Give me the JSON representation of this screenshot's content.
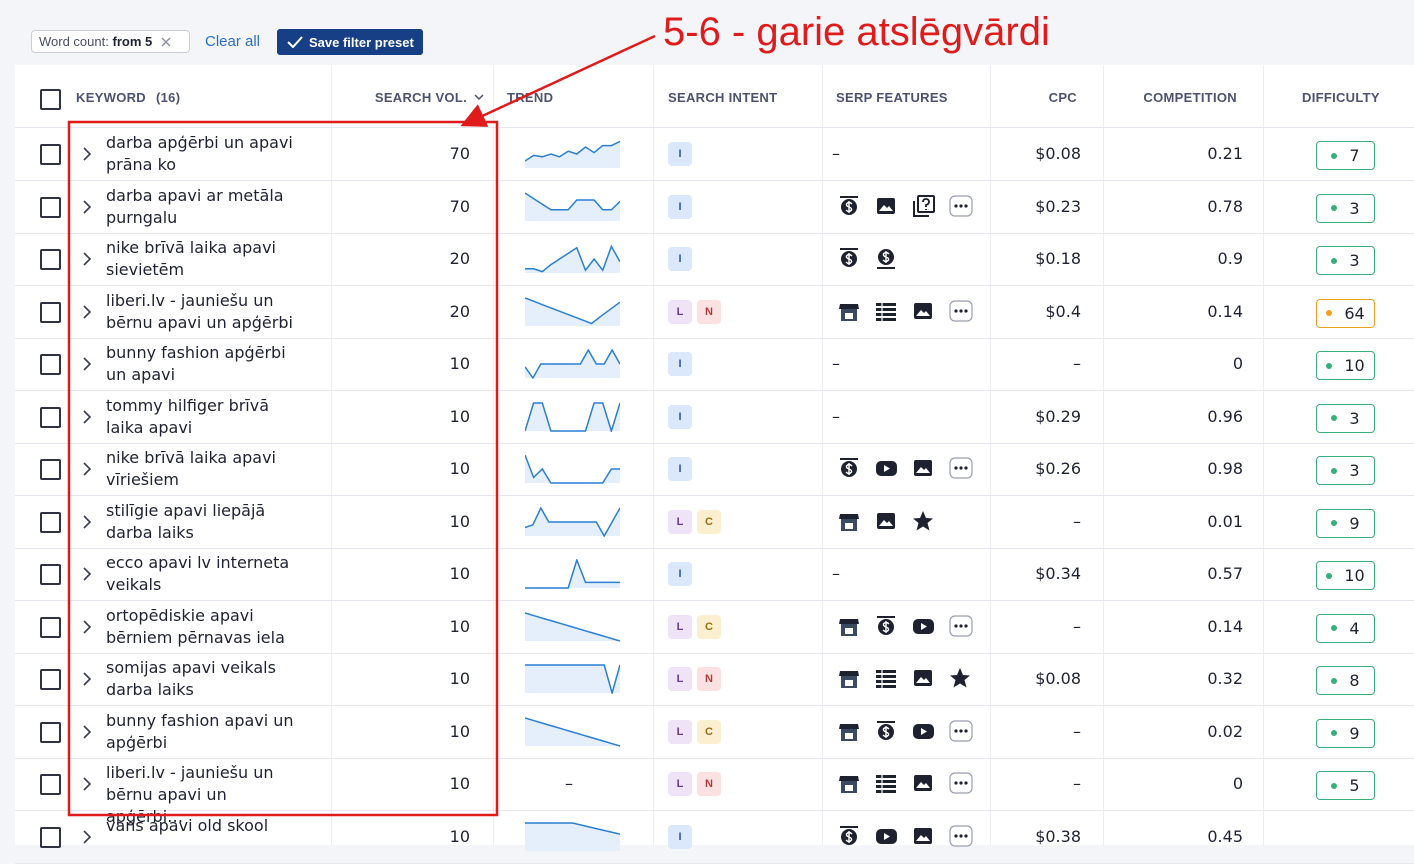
{
  "filters": {
    "chip_label": "Word count:",
    "chip_value": "from 5",
    "clear": "Clear all",
    "save": "Save filter preset"
  },
  "annotation": "5-6 - garie atslēgvārdi",
  "table": {
    "headers": {
      "keyword": "KEYWORD",
      "count": "(16)",
      "volume": "SEARCH VOL.",
      "trend": "TREND",
      "intent": "SEARCH INTENT",
      "serp": "SERP FEATURES",
      "cpc": "CPC",
      "competition": "COMPETITION",
      "difficulty": "DIFFICULTY"
    },
    "intent_colors": {
      "I": [
        "#dbe7fb",
        "#2d5c9e"
      ],
      "L": [
        "#eee3f7",
        "#6a3a8e"
      ],
      "N": [
        "#fbe1e1",
        "#b53a3a"
      ],
      "C": [
        "#fcefcf",
        "#9c6c10"
      ]
    },
    "trend_color": "#2a7fd4",
    "trend_fill": "#e4effb",
    "rows": [
      {
        "keyword": "darba apģērbi un apavi prāna ko",
        "volume": 70,
        "trend": [
          0.25,
          0.45,
          0.4,
          0.5,
          0.4,
          0.6,
          0.5,
          0.75,
          0.55,
          0.8,
          0.8,
          0.95
        ],
        "intent": [
          "I"
        ],
        "serp": "–",
        "cpc": "$0.08",
        "competition": 0.21,
        "difficulty": 7,
        "difficulty_color": "#35b07a"
      },
      {
        "keyword": "darba apavi ar metāla purngalu",
        "volume": 70,
        "trend": [
          1,
          0.8,
          0.6,
          0.4,
          0.4,
          0.4,
          0.75,
          0.75,
          0.75,
          0.4,
          0.4,
          0.7
        ],
        "intent": [
          "I"
        ],
        "serp": [
          "ads_top",
          "image",
          "faq",
          "more"
        ],
        "cpc": "$0.23",
        "competition": 0.78,
        "difficulty": 3,
        "difficulty_color": "#35b07a"
      },
      {
        "keyword": "nike brīvā laika apavi sievietēm",
        "volume": 20,
        "trend": [
          0.15,
          0.15,
          0.05,
          0.3,
          0.5,
          0.7,
          0.9,
          0.1,
          0.5,
          0.1,
          0.95,
          0.4
        ],
        "intent": [
          "I"
        ],
        "serp": [
          "ads_top",
          "ads_bottom"
        ],
        "cpc": "$0.18",
        "competition": 0.9,
        "difficulty": 3,
        "difficulty_color": "#35b07a"
      },
      {
        "keyword": "liberi.lv - jauniešu un bērnu apavi un apģērbi",
        "volume": 20,
        "trend": [
          1,
          0.87,
          0.74,
          0.61,
          0.48,
          0.35,
          0.22,
          0.09,
          0.35,
          0.6,
          0.85
        ],
        "intent": [
          "L",
          "N"
        ],
        "serp": [
          "local",
          "table",
          "image",
          "more"
        ],
        "cpc": "$0.4",
        "competition": 0.14,
        "difficulty": 64,
        "difficulty_color": "#f0a020"
      },
      {
        "keyword": "bunny fashion apģērbi un apavi",
        "volume": 10,
        "trend": [
          0.4,
          0,
          0.5,
          0.5,
          0.5,
          0.5,
          0.5,
          0.5,
          1,
          0.5,
          0.5,
          1,
          0.5
        ],
        "intent": [
          "I"
        ],
        "serp": "–",
        "cpc": "–",
        "competition": 0,
        "difficulty": 10,
        "difficulty_color": "#35b07a"
      },
      {
        "keyword": "tommy hilfiger brīvā laika apavi",
        "volume": 10,
        "trend": [
          0,
          1,
          1,
          0,
          0,
          0,
          0,
          0,
          1,
          1,
          0,
          1
        ],
        "intent": [
          "I"
        ],
        "serp": "–",
        "cpc": "$0.29",
        "competition": 0.96,
        "difficulty": 3,
        "difficulty_color": "#35b07a"
      },
      {
        "keyword": "nike brīvā laika apavi vīriešiem",
        "volume": 10,
        "trend": [
          1,
          0.2,
          0.5,
          0,
          0,
          0,
          0,
          0,
          0,
          0,
          0.5,
          0.5
        ],
        "intent": [
          "I"
        ],
        "serp": [
          "ads_top",
          "video",
          "image",
          "more"
        ],
        "cpc": "$0.26",
        "competition": 0.98,
        "difficulty": 3,
        "difficulty_color": "#35b07a"
      },
      {
        "keyword": "stilīgie apavi liepājā darba laiks",
        "volume": 10,
        "trend": [
          0.3,
          0.4,
          1,
          0.5,
          0.5,
          0.5,
          0.5,
          0.5,
          0.5,
          0.5,
          0,
          0.5,
          1
        ],
        "intent": [
          "L",
          "C"
        ],
        "serp": [
          "local",
          "image",
          "star"
        ],
        "cpc": "–",
        "competition": 0.01,
        "difficulty": 9,
        "difficulty_color": "#35b07a"
      },
      {
        "keyword": "ecco apavi lv interneta veikals",
        "volume": 10,
        "trend": [
          0,
          0,
          0,
          0,
          0,
          0,
          1,
          0.2,
          0.2,
          0.2,
          0.2,
          0.2
        ],
        "intent": [
          "I"
        ],
        "serp": "–",
        "cpc": "$0.34",
        "competition": 0.57,
        "difficulty": 10,
        "difficulty_color": "#35b07a"
      },
      {
        "keyword": "ortopēdiskie apavi bērniem pērnavas iela",
        "volume": 10,
        "trend": [
          1,
          0.9,
          0.8,
          0.7,
          0.6,
          0.5,
          0.4,
          0.3,
          0.2,
          0.1,
          0
        ],
        "intent": [
          "L",
          "C"
        ],
        "serp": [
          "local",
          "ads_top",
          "video",
          "more"
        ],
        "cpc": "–",
        "competition": 0.14,
        "difficulty": 4,
        "difficulty_color": "#35b07a"
      },
      {
        "keyword": "somijas apavi veikals darba laiks",
        "volume": 10,
        "trend": [
          1,
          1,
          1,
          1,
          1,
          1,
          1,
          1,
          1,
          1,
          1,
          0,
          1
        ],
        "intent": [
          "L",
          "N"
        ],
        "serp": [
          "local",
          "table",
          "image",
          "star"
        ],
        "cpc": "$0.08",
        "competition": 0.32,
        "difficulty": 8,
        "difficulty_color": "#35b07a"
      },
      {
        "keyword": "bunny fashion apavi un apģērbi",
        "volume": 10,
        "trend": [
          1,
          0.9,
          0.8,
          0.7,
          0.6,
          0.5,
          0.4,
          0.3,
          0.2,
          0.1,
          0
        ],
        "intent": [
          "L",
          "C"
        ],
        "serp": [
          "local",
          "ads_top",
          "video",
          "more"
        ],
        "cpc": "–",
        "competition": 0.02,
        "difficulty": 9,
        "difficulty_color": "#35b07a"
      },
      {
        "keyword": "liberi.lv - jauniešu un bērnu apavi un apģērbi…",
        "volume": 10,
        "trend": "–",
        "intent": [
          "L",
          "N"
        ],
        "serp": [
          "local",
          "table",
          "image",
          "more"
        ],
        "cpc": "–",
        "competition": 0,
        "difficulty": 5,
        "difficulty_color": "#35b07a"
      },
      {
        "keyword": "vans apavi old skool",
        "volume": 10,
        "trend": [
          1,
          1,
          1,
          0.8,
          0.6
        ],
        "intent": [
          "I"
        ],
        "serp": [
          "ads_top",
          "video",
          "image",
          "more"
        ],
        "cpc": "$0.38",
        "competition": 0.45
      }
    ]
  }
}
